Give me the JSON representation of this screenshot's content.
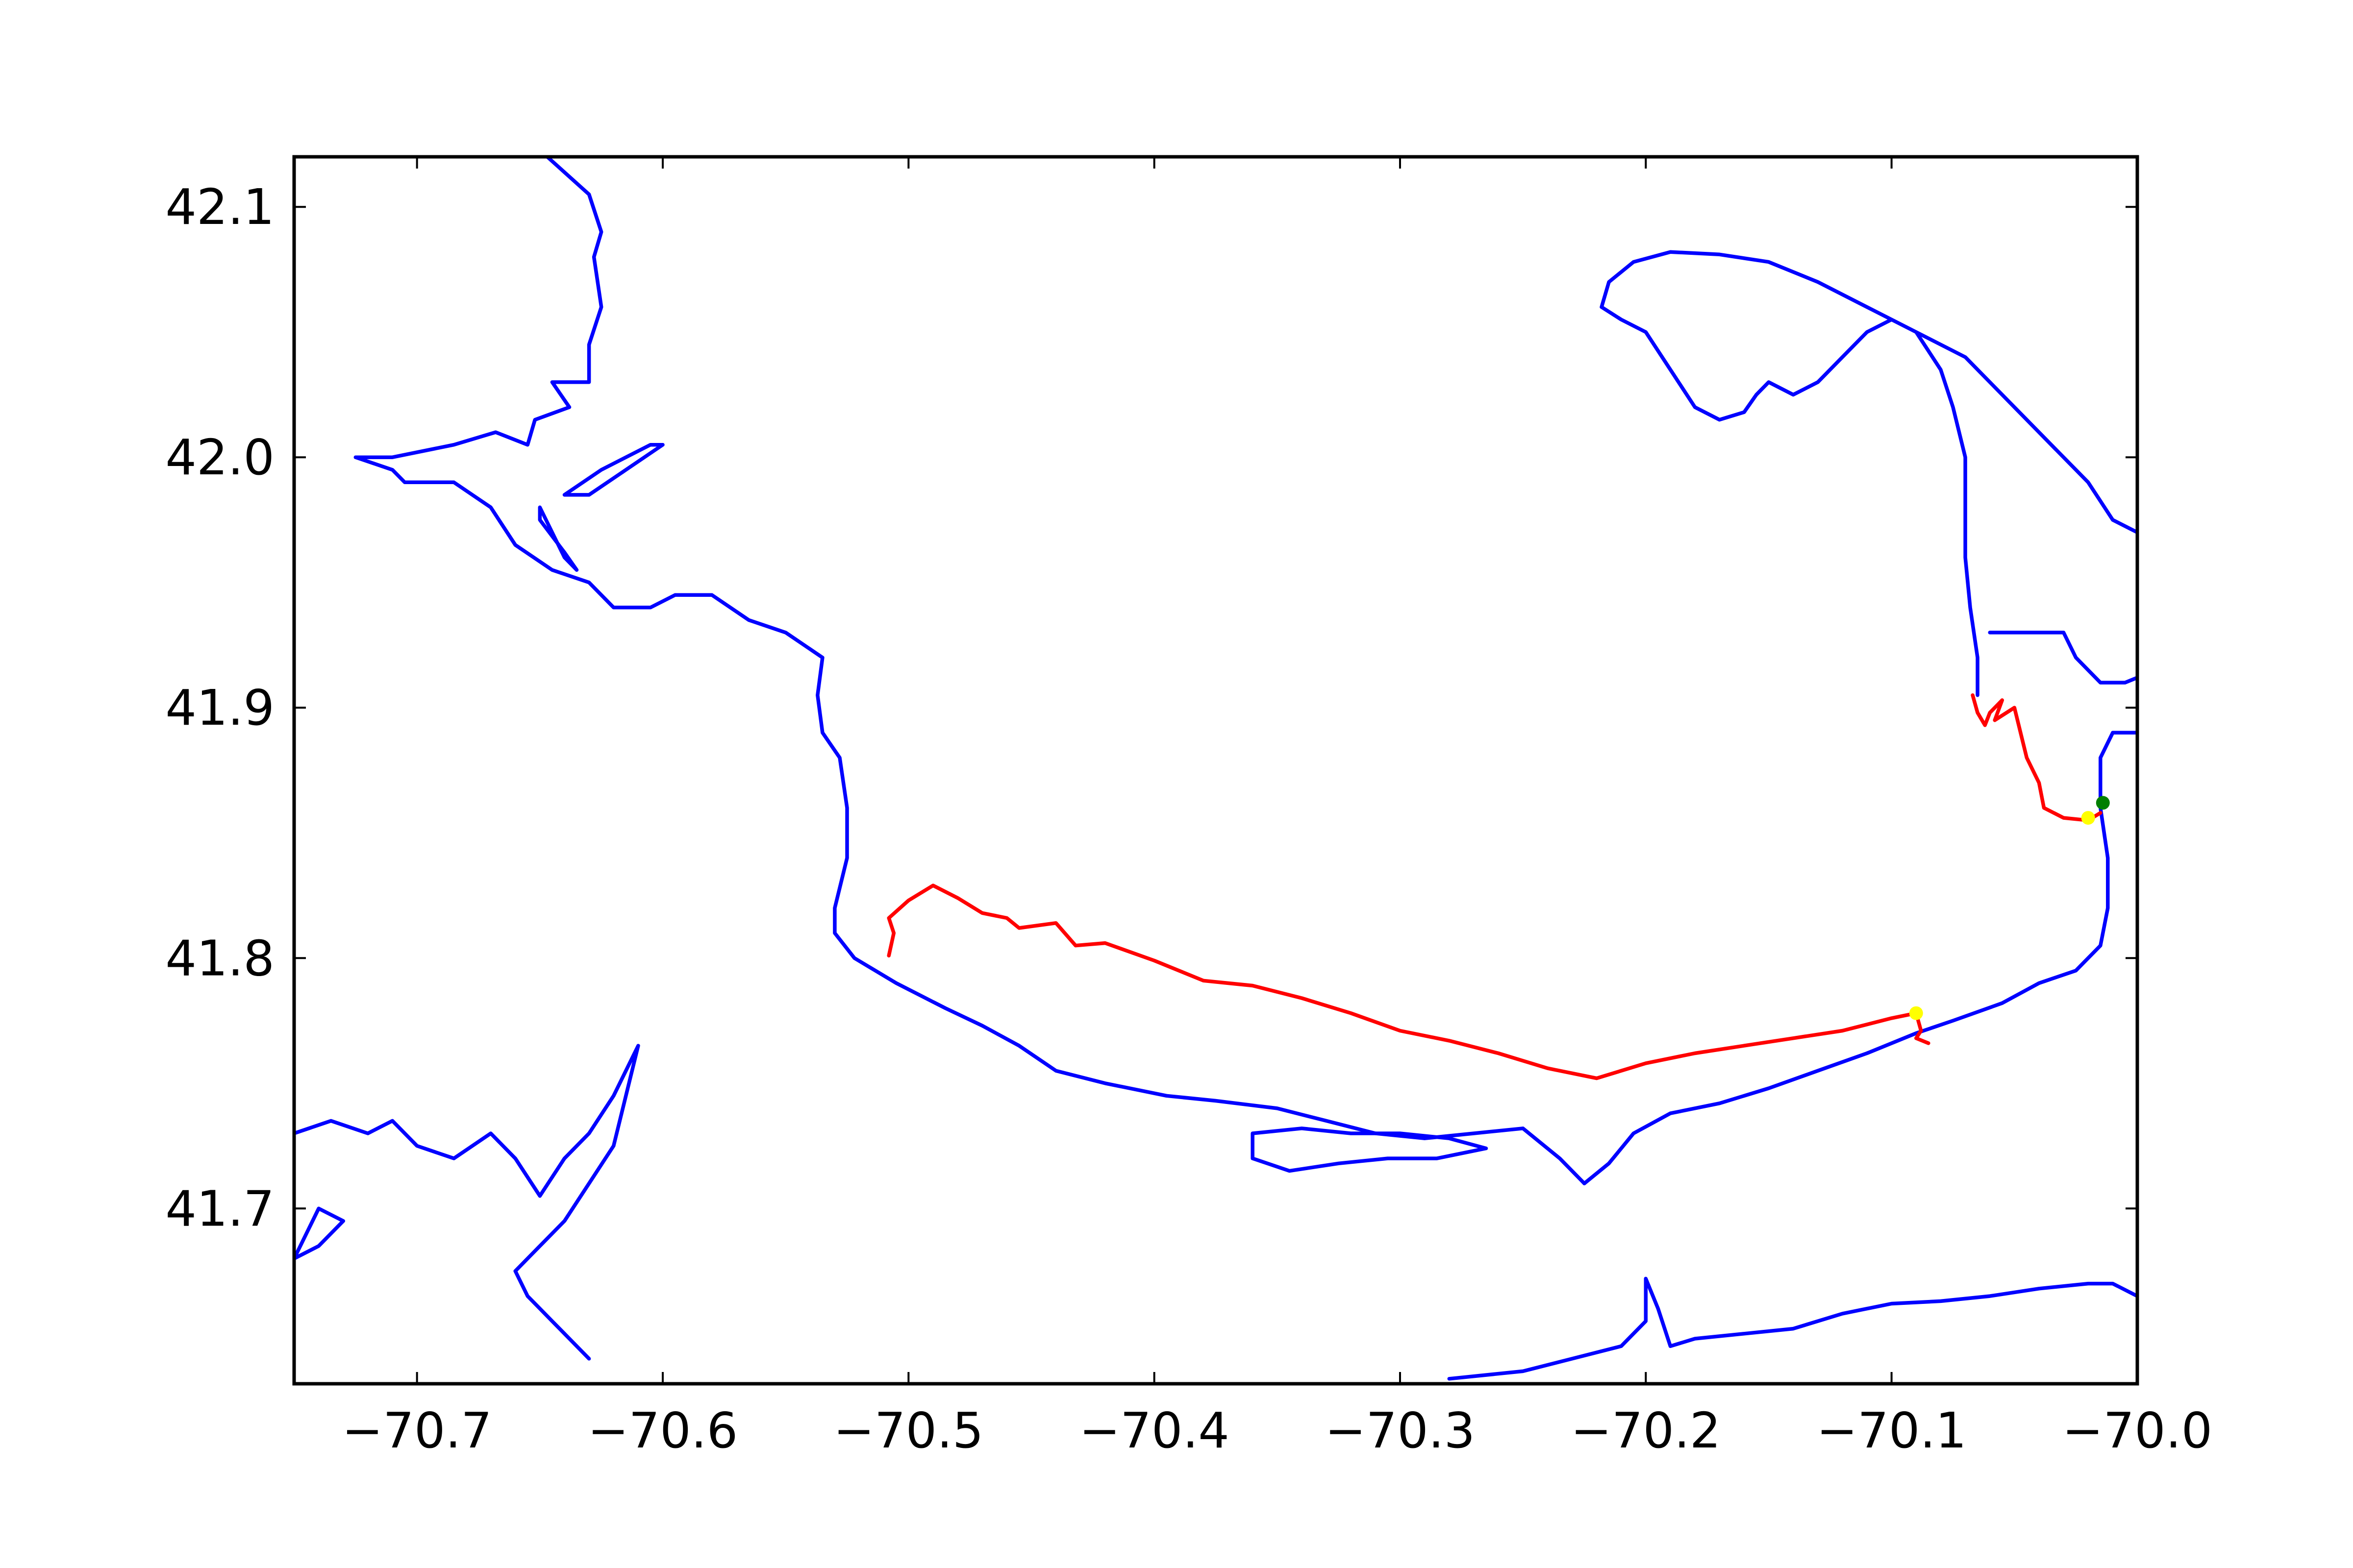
{
  "chart_data": {
    "type": "line",
    "title": "",
    "xlabel": "",
    "ylabel": "",
    "xlim": [
      -70.75,
      -70.0
    ],
    "ylim": [
      41.63,
      42.12
    ],
    "xticks": [
      -70.7,
      -70.6,
      -70.5,
      -70.4,
      -70.3,
      -70.2,
      -70.1,
      -70.0
    ],
    "yticks": [
      41.7,
      41.8,
      41.9,
      42.0,
      42.1
    ],
    "xtick_labels": [
      "−70.7",
      "−70.6",
      "−70.5",
      "−70.4",
      "−70.3",
      "−70.2",
      "−70.1",
      "−70.0"
    ],
    "ytick_labels": [
      "41.7",
      "41.8",
      "41.9",
      "42.0",
      "42.1"
    ],
    "grid": false,
    "legend": "none",
    "colors": {
      "coastline": "#0000ff",
      "track": "#ff0000",
      "marker_yellow": "#ffff00",
      "marker_green": "#007f00"
    },
    "coastlines": [
      {
        "name": "plymouth-duxbury-coast",
        "points": [
          [
            -70.647,
            42.12
          ],
          [
            -70.63,
            42.105
          ],
          [
            -70.625,
            42.09
          ],
          [
            -70.628,
            42.08
          ],
          [
            -70.625,
            42.06
          ],
          [
            -70.63,
            42.045
          ],
          [
            -70.63,
            42.03
          ],
          [
            -70.645,
            42.03
          ],
          [
            -70.638,
            42.02
          ],
          [
            -70.652,
            42.015
          ],
          [
            -70.655,
            42.005
          ],
          [
            -70.668,
            42.01
          ],
          [
            -70.685,
            42.005
          ],
          [
            -70.71,
            42.0
          ],
          [
            -70.725,
            42.0
          ],
          [
            -70.71,
            41.995
          ],
          [
            -70.705,
            41.99
          ],
          [
            -70.685,
            41.99
          ],
          [
            -70.67,
            41.98
          ],
          [
            -70.66,
            41.965
          ],
          [
            -70.645,
            41.955
          ],
          [
            -70.63,
            41.95
          ],
          [
            -70.62,
            41.94
          ],
          [
            -70.605,
            41.94
          ],
          [
            -70.595,
            41.945
          ],
          [
            -70.58,
            41.945
          ],
          [
            -70.565,
            41.935
          ],
          [
            -70.55,
            41.93
          ],
          [
            -70.535,
            41.92
          ],
          [
            -70.537,
            41.905
          ],
          [
            -70.535,
            41.89
          ],
          [
            -70.528,
            41.88
          ],
          [
            -70.525,
            41.86
          ],
          [
            -70.525,
            41.84
          ],
          [
            -70.53,
            41.82
          ],
          [
            -70.53,
            41.81
          ],
          [
            -70.522,
            41.8
          ],
          [
            -70.505,
            41.79
          ],
          [
            -70.485,
            41.78
          ],
          [
            -70.47,
            41.773
          ],
          [
            -70.455,
            41.765
          ],
          [
            -70.44,
            41.755
          ],
          [
            -70.42,
            41.75
          ],
          [
            -70.395,
            41.745
          ],
          [
            -70.375,
            41.743
          ],
          [
            -70.35,
            41.74
          ],
          [
            -70.33,
            41.735
          ],
          [
            -70.31,
            41.73
          ],
          [
            -70.29,
            41.728
          ],
          [
            -70.27,
            41.73
          ],
          [
            -70.25,
            41.732
          ],
          [
            -70.235,
            41.72
          ],
          [
            -70.225,
            41.71
          ]
        ]
      },
      {
        "name": "cape-cod-bay-south-shore",
        "points": [
          [
            -70.225,
            41.71
          ],
          [
            -70.215,
            41.718
          ],
          [
            -70.205,
            41.73
          ],
          [
            -70.19,
            41.738
          ],
          [
            -70.17,
            41.742
          ],
          [
            -70.15,
            41.748
          ],
          [
            -70.13,
            41.755
          ],
          [
            -70.11,
            41.762
          ],
          [
            -70.09,
            41.77
          ],
          [
            -70.075,
            41.775
          ],
          [
            -70.055,
            41.782
          ],
          [
            -70.04,
            41.79
          ],
          [
            -70.025,
            41.795
          ],
          [
            -70.015,
            41.805
          ],
          [
            -70.012,
            41.82
          ],
          [
            -70.012,
            41.84
          ],
          [
            -70.015,
            41.86
          ],
          [
            -70.015,
            41.88
          ],
          [
            -70.01,
            41.89
          ],
          [
            -70.0,
            41.89
          ]
        ]
      },
      {
        "name": "provincetown-hook",
        "points": [
          [
            -70.0,
            41.97
          ],
          [
            -70.01,
            41.975
          ],
          [
            -70.02,
            41.99
          ],
          [
            -70.035,
            42.005
          ],
          [
            -70.05,
            42.02
          ],
          [
            -70.07,
            42.04
          ],
          [
            -70.09,
            42.05
          ],
          [
            -70.11,
            42.06
          ],
          [
            -70.13,
            42.07
          ],
          [
            -70.15,
            42.078
          ],
          [
            -70.17,
            42.081
          ],
          [
            -70.19,
            42.082
          ],
          [
            -70.205,
            42.078
          ],
          [
            -70.215,
            42.07
          ],
          [
            -70.218,
            42.06
          ],
          [
            -70.21,
            42.055
          ],
          [
            -70.2,
            42.05
          ],
          [
            -70.19,
            42.035
          ],
          [
            -70.18,
            42.02
          ],
          [
            -70.17,
            42.015
          ],
          [
            -70.16,
            42.018
          ],
          [
            -70.155,
            42.025
          ],
          [
            -70.15,
            42.03
          ],
          [
            -70.14,
            42.025
          ],
          [
            -70.13,
            42.03
          ],
          [
            -70.12,
            42.04
          ],
          [
            -70.11,
            42.05
          ],
          [
            -70.1,
            42.055
          ],
          [
            -70.09,
            42.05
          ],
          [
            -70.08,
            42.035
          ],
          [
            -70.075,
            42.02
          ],
          [
            -70.07,
            42.0
          ],
          [
            -70.07,
            41.98
          ],
          [
            -70.07,
            41.96
          ],
          [
            -70.068,
            41.94
          ],
          [
            -70.065,
            41.92
          ],
          [
            -70.065,
            41.905
          ]
        ]
      },
      {
        "name": "wellfleet-harbor-shore",
        "points": [
          [
            -70.06,
            41.93
          ],
          [
            -70.05,
            41.93
          ],
          [
            -70.04,
            41.93
          ],
          [
            -70.03,
            41.93
          ],
          [
            -70.025,
            41.92
          ],
          [
            -70.015,
            41.91
          ],
          [
            -70.005,
            41.91
          ],
          [
            -70.0,
            41.912
          ]
        ]
      },
      {
        "name": "south-cape-shore",
        "points": [
          [
            -70.0,
            41.665
          ],
          [
            -70.01,
            41.67
          ],
          [
            -70.02,
            41.67
          ],
          [
            -70.04,
            41.668
          ],
          [
            -70.06,
            41.665
          ],
          [
            -70.08,
            41.663
          ],
          [
            -70.1,
            41.662
          ],
          [
            -70.12,
            41.658
          ],
          [
            -70.14,
            41.652
          ],
          [
            -70.16,
            41.65
          ],
          [
            -70.18,
            41.648
          ],
          [
            -70.19,
            41.645
          ],
          [
            -70.195,
            41.66
          ],
          [
            -70.2,
            41.672
          ],
          [
            -70.2,
            41.655
          ],
          [
            -70.21,
            41.645
          ],
          [
            -70.23,
            41.64
          ],
          [
            -70.25,
            41.635
          ],
          [
            -70.28,
            41.632
          ]
        ]
      },
      {
        "name": "sandy-neck",
        "points": [
          [
            -70.36,
            41.73
          ],
          [
            -70.34,
            41.732
          ],
          [
            -70.32,
            41.73
          ],
          [
            -70.3,
            41.73
          ],
          [
            -70.28,
            41.728
          ],
          [
            -70.265,
            41.724
          ],
          [
            -70.285,
            41.72
          ],
          [
            -70.305,
            41.72
          ],
          [
            -70.325,
            41.718
          ],
          [
            -70.345,
            41.715
          ],
          [
            -70.36,
            41.72
          ],
          [
            -70.36,
            41.73
          ]
        ]
      },
      {
        "name": "duxbury-beach",
        "points": [
          [
            -70.6,
            42.005
          ],
          [
            -70.615,
            41.995
          ],
          [
            -70.63,
            41.985
          ],
          [
            -70.64,
            41.985
          ],
          [
            -70.625,
            41.995
          ],
          [
            -70.605,
            42.005
          ],
          [
            -70.6,
            42.005
          ]
        ]
      },
      {
        "name": "duxbury-bay-spit",
        "points": [
          [
            -70.65,
            41.98
          ],
          [
            -70.645,
            41.97
          ],
          [
            -70.64,
            41.96
          ],
          [
            -70.635,
            41.955
          ],
          [
            -70.64,
            41.962
          ],
          [
            -70.65,
            41.975
          ],
          [
            -70.65,
            41.98
          ]
        ]
      },
      {
        "name": "buzzards-bay-coast",
        "points": [
          [
            -70.75,
            41.73
          ],
          [
            -70.735,
            41.735
          ],
          [
            -70.72,
            41.73
          ],
          [
            -70.71,
            41.735
          ],
          [
            -70.7,
            41.725
          ],
          [
            -70.685,
            41.72
          ],
          [
            -70.67,
            41.73
          ],
          [
            -70.66,
            41.72
          ],
          [
            -70.65,
            41.705
          ],
          [
            -70.64,
            41.72
          ],
          [
            -70.63,
            41.73
          ],
          [
            -70.62,
            41.745
          ],
          [
            -70.61,
            41.765
          ],
          [
            -70.615,
            41.745
          ],
          [
            -70.62,
            41.725
          ],
          [
            -70.63,
            41.71
          ],
          [
            -70.64,
            41.695
          ],
          [
            -70.65,
            41.685
          ],
          [
            -70.66,
            41.675
          ],
          [
            -70.655,
            41.665
          ],
          [
            -70.645,
            41.655
          ],
          [
            -70.63,
            41.64
          ]
        ]
      },
      {
        "name": "buzzards-bay-west-coast",
        "points": [
          [
            -70.75,
            41.68
          ],
          [
            -70.745,
            41.69
          ],
          [
            -70.74,
            41.7
          ],
          [
            -70.73,
            41.695
          ],
          [
            -70.74,
            41.685
          ],
          [
            -70.75,
            41.68
          ]
        ]
      }
    ],
    "tracks": [
      {
        "name": "long-track",
        "points": [
          [
            -70.508,
            41.801
          ],
          [
            -70.506,
            41.81
          ],
          [
            -70.508,
            41.816
          ],
          [
            -70.5,
            41.823
          ],
          [
            -70.49,
            41.829
          ],
          [
            -70.48,
            41.824
          ],
          [
            -70.47,
            41.818
          ],
          [
            -70.46,
            41.816
          ],
          [
            -70.455,
            41.812
          ],
          [
            -70.44,
            41.814
          ],
          [
            -70.432,
            41.805
          ],
          [
            -70.42,
            41.806
          ],
          [
            -70.4,
            41.799
          ],
          [
            -70.38,
            41.791
          ],
          [
            -70.36,
            41.789
          ],
          [
            -70.34,
            41.784
          ],
          [
            -70.32,
            41.778
          ],
          [
            -70.3,
            41.771
          ],
          [
            -70.28,
            41.767
          ],
          [
            -70.26,
            41.762
          ],
          [
            -70.24,
            41.756
          ],
          [
            -70.22,
            41.752
          ],
          [
            -70.2,
            41.758
          ],
          [
            -70.18,
            41.762
          ],
          [
            -70.16,
            41.765
          ],
          [
            -70.14,
            41.768
          ],
          [
            -70.12,
            41.771
          ],
          [
            -70.1,
            41.776
          ],
          [
            -70.09,
            41.778
          ],
          [
            -70.088,
            41.771
          ],
          [
            -70.09,
            41.768
          ],
          [
            -70.085,
            41.766
          ]
        ]
      },
      {
        "name": "north-track",
        "points": [
          [
            -70.067,
            41.905
          ],
          [
            -70.065,
            41.898
          ],
          [
            -70.062,
            41.893
          ],
          [
            -70.06,
            41.898
          ],
          [
            -70.055,
            41.903
          ],
          [
            -70.058,
            41.895
          ],
          [
            -70.05,
            41.9
          ],
          [
            -70.045,
            41.88
          ],
          [
            -70.04,
            41.87
          ],
          [
            -70.038,
            41.86
          ],
          [
            -70.03,
            41.856
          ],
          [
            -70.02,
            41.855
          ],
          [
            -70.015,
            41.858
          ]
        ]
      }
    ],
    "markers": [
      {
        "name": "yellow-marker-south",
        "color": "yellow",
        "x": -70.09,
        "y": 41.778
      },
      {
        "name": "yellow-marker-east",
        "color": "yellow",
        "x": -70.02,
        "y": 41.856
      },
      {
        "name": "green-marker-east",
        "color": "green",
        "x": -70.014,
        "y": 41.862
      }
    ]
  }
}
